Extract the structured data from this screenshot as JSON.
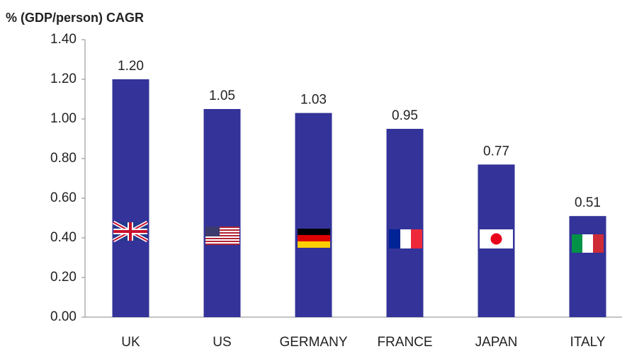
{
  "chart_data": {
    "type": "bar",
    "title": "% (GDP/person) CAGR",
    "categories": [
      "UK",
      "US",
      "GERMANY",
      "FRANCE",
      "JAPAN",
      "ITALY"
    ],
    "values": [
      1.2,
      1.05,
      1.03,
      0.95,
      0.77,
      0.51
    ],
    "value_labels": [
      "1.20",
      "1.05",
      "1.03",
      "0.95",
      "0.77",
      "0.51"
    ],
    "color": "#333399",
    "ylim": [
      0,
      1.4
    ],
    "yticks": [
      {
        "value": 0,
        "label": "0.00"
      },
      {
        "value": 0.2,
        "label": "0.20"
      },
      {
        "value": 0.4,
        "label": "0.40"
      },
      {
        "value": 0.6,
        "label": "0.60"
      },
      {
        "value": 0.8,
        "label": "0.80"
      },
      {
        "value": 1,
        "label": "1.00"
      },
      {
        "value": 1.2,
        "label": "1.20"
      },
      {
        "value": 1.4,
        "label": "1.40"
      }
    ],
    "grid": false
  }
}
